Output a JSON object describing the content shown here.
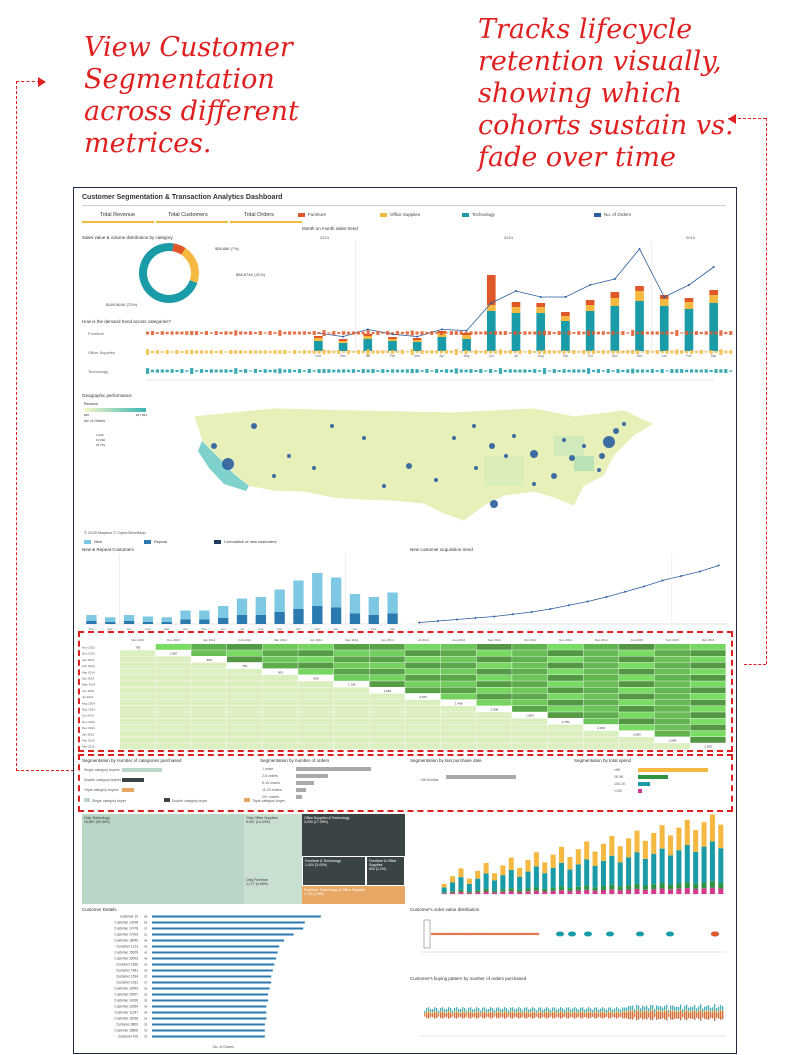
{
  "annotations": {
    "left": "View Customer\nSegmentation\nacross different\nmetrices.",
    "right": "Tracks lifecycle\nretention visually,\nshowing which\ncohorts sustain vs.\nfade over time"
  },
  "dashboard": {
    "title": "Customer Segmentation & Transaction Analytics Dashboard",
    "kpis": [
      "Total Revenue",
      "Total Customers",
      "Total Orders"
    ],
    "legend": [
      {
        "label": "Furniture",
        "color": "#e0582a"
      },
      {
        "label": "Office Supplies",
        "color": "#f5b841"
      },
      {
        "label": "Technology",
        "color": "#1a9ba8"
      },
      {
        "label": "No. of Orders",
        "color": "#2a5d9f"
      }
    ],
    "colors": {
      "furniture": "#e0582a",
      "office": "#f5b841",
      "tech": "#1a9ba8",
      "orders": "#2a5d9f",
      "dark": "#3b4444",
      "green": "#2e9444"
    },
    "panels": {
      "donut": "Sales value & volume distribution by category",
      "monthly": "Month on month sales trend",
      "demand": "How is the demand trend across categories?",
      "geo": "Geographic performance",
      "geo_revenue": "Revenue",
      "geo_orders": "No. of Orders",
      "map_credit": "© 2025 Mapbox © OpenStreetMap",
      "new_repeat": "New & Repeat Customers",
      "acquisition": "New customer acquisition trend",
      "seg_categories": "Segmentation by number of categories purchased",
      "seg_orders": "Segmentation by number of orders",
      "seg_last_purchase": "Segmentation by last purchase date",
      "seg_spend": "Segmentation by total spend",
      "customer_details": "Customer Details",
      "order_value_dist": "Customer's order value distribution",
      "buying_pattern": "Customer's buying pattern by number of orders purchased"
    },
    "donut_labels": [
      "$58,886 (7%)",
      "$58,874K (21%)",
      "$169,864K (72%)"
    ],
    "demand_rows": [
      "Furniture",
      "Office Supplies",
      "Technology"
    ],
    "year_labels": [
      "2013",
      "2014",
      "2015"
    ],
    "geo_legend": {
      "range_min": "$90",
      "range_max": "$17,954",
      "orders": [
        "1,000",
        "10,000",
        "16,751"
      ]
    },
    "new_repeat_legend": [
      "New",
      "Repeat",
      "Cumulative of new customers"
    ],
    "seg_categories_rows": [
      "Single category buyers",
      "Double category buyers",
      "Triple category buyers"
    ],
    "seg_orders_rows": [
      "1 order",
      "2-5 orders",
      "6-10 orders",
      "11-20 orders",
      "20+ orders"
    ],
    "seg_last_purchase_rows": [
      "<36 Months"
    ],
    "seg_spend_rows": [
      ">5K",
      "1K-5K",
      "100-1K",
      "<100"
    ],
    "seg_categories_legend": [
      "Single category buyer",
      "Double category buyer",
      "Triple category buyer"
    ],
    "treemap": [
      {
        "label": "Only Technology\n15,897 (55.36%)",
        "color": "#b9d6c6"
      },
      {
        "label": "Only Office Supplies\n5,937 (14.34%)",
        "color": "#c9dfd0"
      },
      {
        "label": "Only Furniture\n1,177 (4.08%)",
        "color": "#c9dfd0"
      },
      {
        "label": "Office Supplies & Technology\n3,034 (17.09%)",
        "color": "#3b4444"
      },
      {
        "label": "Furniture & Technology\n1,424 (3.43%)",
        "color": "#3b4444"
      },
      {
        "label": "Furniture & Office Supplies\n693 (2.2%)",
        "color": "#3b4444"
      },
      {
        "label": "Furniture, Technology & Office Supplies\n1,700 (3.8%)",
        "color": "#e8a765"
      }
    ],
    "customer_rows": [
      "Customer 10",
      "Customer 14198",
      "Customer 17478",
      "Customer 17003",
      "Customer 18046",
      "Customer 1213",
      "Customer 15009",
      "Customer 22003",
      "Customer 1666",
      "Customer 7681",
      "Customer 1694",
      "Customer 1281",
      "Customer 14093",
      "Customer 20007",
      "Customer 14196",
      "Customer 12064",
      "Customer 11347",
      "Customer 16036",
      "Customer 9803",
      "Customer 15806",
      "Customer 416"
    ],
    "customer_axis": "No. of Orders",
    "cohort_months": [
      "Nov 2013",
      "Dec 2013",
      "Jan 2014",
      "Feb 2014",
      "Mar 2014",
      "Apr 2014",
      "May 2014",
      "Jun 2014",
      "Jul 2014",
      "Aug 2014",
      "Sep 2014",
      "Oct 2014",
      "Nov 2014",
      "Dec 2014",
      "Jan 2015",
      "Feb 2015",
      "Mar 2015"
    ],
    "cohort_first_values": [
      "795",
      "1,887",
      "699",
      "781",
      "503",
      "800",
      "1,768",
      "1,681",
      "2,150",
      "1,468",
      "2,908",
      "1,863",
      "2,750",
      "2,150",
      "2,080",
      "1,848",
      "2,800"
    ]
  },
  "chart_data": [
    {
      "type": "pie",
      "title": "Sales value & volume distribution by category",
      "categories": [
        "Furniture",
        "Office Supplies",
        "Technology"
      ],
      "labels": [
        "$58,886 (7%)",
        "$58,874K (21%)",
        "$169,864K (72%)"
      ],
      "values": [
        7,
        21,
        72
      ]
    },
    {
      "type": "bar",
      "title": "Month on month sales trend",
      "categories": [
        "Nov",
        "Dec",
        "Jan",
        "Feb",
        "Mar",
        "Apr",
        "May",
        "Jun",
        "Jul",
        "Aug",
        "Sep",
        "Oct",
        "Nov",
        "Dec",
        "Jan",
        "Feb",
        "Mar"
      ],
      "series": [
        {
          "name": "Technology",
          "values": [
            10,
            8,
            12,
            10,
            9,
            14,
            12,
            40,
            38,
            38,
            30,
            40,
            45,
            50,
            45,
            42,
            48
          ]
        },
        {
          "name": "Office Supplies",
          "values": [
            3,
            2,
            3,
            2,
            2,
            4,
            4,
            6,
            6,
            6,
            5,
            6,
            8,
            10,
            7,
            7,
            8
          ]
        },
        {
          "name": "Furniture",
          "values": [
            2,
            2,
            2,
            2,
            2,
            2,
            2,
            30,
            5,
            4,
            4,
            5,
            6,
            5,
            4,
            4,
            5
          ]
        },
        {
          "name": "No. of Orders",
          "values": [
            15,
            12,
            18,
            14,
            12,
            18,
            17,
            40,
            50,
            45,
            45,
            55,
            60,
            85,
            45,
            55,
            70
          ]
        }
      ]
    },
    {
      "type": "bar",
      "title": "New & Repeat Customers",
      "categories": [
        "Nov",
        "Dec",
        "Jan",
        "Feb",
        "Mar",
        "Apr",
        "May",
        "Jun",
        "Jul",
        "Aug",
        "Sep",
        "Oct",
        "Nov",
        "Dec",
        "Jan",
        "Feb",
        "Mar"
      ],
      "series": [
        {
          "name": "New",
          "values": [
            8,
            6,
            8,
            7,
            6,
            12,
            12,
            16,
            22,
            24,
            30,
            38,
            44,
            40,
            26,
            24,
            28
          ]
        },
        {
          "name": "Repeat",
          "values": [
            4,
            3,
            4,
            3,
            3,
            6,
            6,
            8,
            12,
            12,
            16,
            20,
            24,
            22,
            14,
            12,
            14
          ]
        }
      ]
    },
    {
      "type": "line",
      "title": "New customer acquisition trend",
      "x": [
        "Nov",
        "Dec",
        "Jan",
        "Feb",
        "Mar",
        "Apr",
        "May",
        "Jun",
        "Jul",
        "Aug",
        "Sep",
        "Oct",
        "Nov",
        "Dec",
        "Jan",
        "Feb",
        "Mar"
      ],
      "series": [
        {
          "name": "Cumulative of new customers",
          "values": [
            2,
            4,
            6,
            8,
            10,
            13,
            16,
            20,
            25,
            30,
            36,
            43,
            50,
            58,
            64,
            70,
            78
          ]
        }
      ]
    },
    {
      "type": "heatmap",
      "title": "Cohort retention",
      "rows": [
        "Nov 2013",
        "Dec 2013",
        "Jan 2014",
        "Feb 2014",
        "Mar 2014",
        "Apr 2014",
        "May 2014",
        "Jun 2014",
        "Jul 2014",
        "Aug 2014",
        "Sep 2014",
        "Oct 2014",
        "Nov 2014",
        "Dec 2014",
        "Jan 2015",
        "Feb 2015",
        "Mar 2015"
      ],
      "columns": [
        "Nov 2013",
        "Dec 2013",
        "Jan 2014",
        "Feb 2014",
        "Mar 2014",
        "Apr 2014",
        "May 2014",
        "Jun 2014",
        "Jul 2014",
        "Aug 2014",
        "Sep 2014",
        "Oct 2014",
        "Nov 2014",
        "Dec 2014",
        "Jan 2015",
        "Feb 2015",
        "Mar 2015"
      ]
    },
    {
      "type": "bar",
      "title": "Customer Details",
      "categories": [
        "Customer 10",
        "Customer 14198",
        "Customer 17478",
        "Customer 17003",
        "Customer 18046",
        "Customer 1213",
        "Customer 15009",
        "Customer 22003",
        "Customer 1666",
        "Customer 7681",
        "Customer 1694",
        "Customer 1281",
        "Customer 14093",
        "Customer 20007",
        "Customer 14196",
        "Customer 12064",
        "Customer 11347",
        "Customer 16036",
        "Customer 9803",
        "Customer 15806",
        "Customer 416"
      ],
      "values": [
        68,
        58,
        57,
        51,
        45,
        42,
        41,
        40,
        39,
        38,
        37,
        37,
        36,
        35,
        35,
        34,
        34,
        34,
        33,
        33,
        33
      ]
    }
  ]
}
